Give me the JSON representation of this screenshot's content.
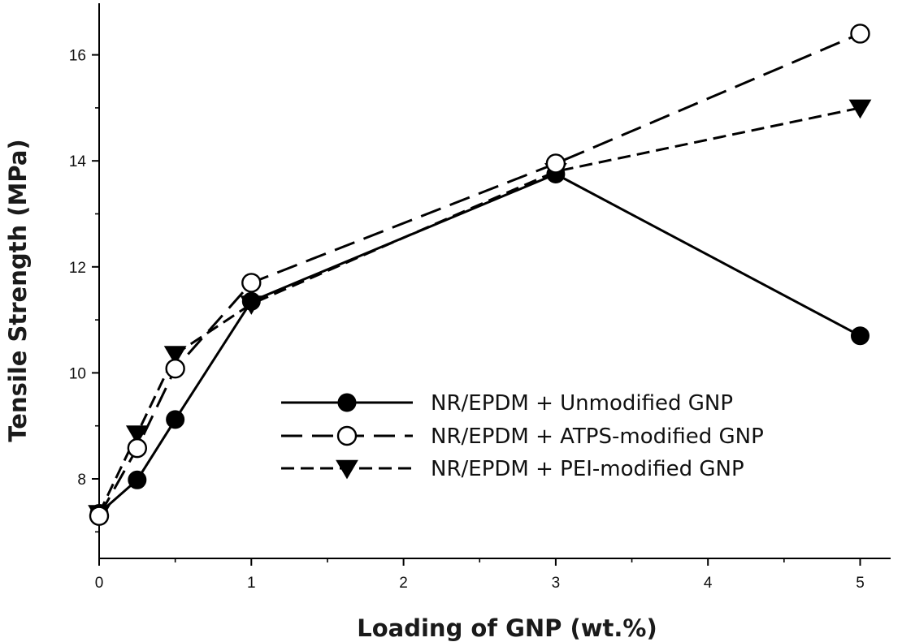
{
  "chart_data": {
    "type": "line",
    "title": "",
    "xlabel": "Loading of GNP (wt.%)",
    "ylabel": "Tensile Strength (MPa)",
    "xlim": [
      0,
      5.2
    ],
    "ylim": [
      6.5,
      17
    ],
    "x_ticks": [
      0,
      1,
      2,
      3,
      4,
      5
    ],
    "y_ticks": [
      8,
      10,
      12,
      14,
      16
    ],
    "grid": false,
    "legend_position": "center-right",
    "series": [
      {
        "name": "NR/EPDM + Unmodified GNP",
        "marker": "filled-circle",
        "line_style": "solid",
        "color": "#000000",
        "x": [
          0,
          0.25,
          0.5,
          1,
          3,
          5
        ],
        "y": [
          7.35,
          7.98,
          9.12,
          11.35,
          13.75,
          10.7
        ]
      },
      {
        "name": "NR/EPDM + ATPS-modified GNP",
        "marker": "open-circle",
        "line_style": "long-dash",
        "color": "#000000",
        "x": [
          0,
          0.25,
          0.5,
          1,
          3,
          5
        ],
        "y": [
          7.3,
          8.58,
          10.08,
          11.7,
          13.95,
          16.4
        ]
      },
      {
        "name": "NR/EPDM + PEI-modified GNP",
        "marker": "filled-triangle-down",
        "line_style": "short-dash",
        "color": "#000000",
        "x": [
          0,
          0.25,
          0.5,
          1,
          3,
          5
        ],
        "y": [
          7.35,
          8.85,
          10.35,
          11.3,
          13.8,
          15.0
        ]
      }
    ]
  }
}
